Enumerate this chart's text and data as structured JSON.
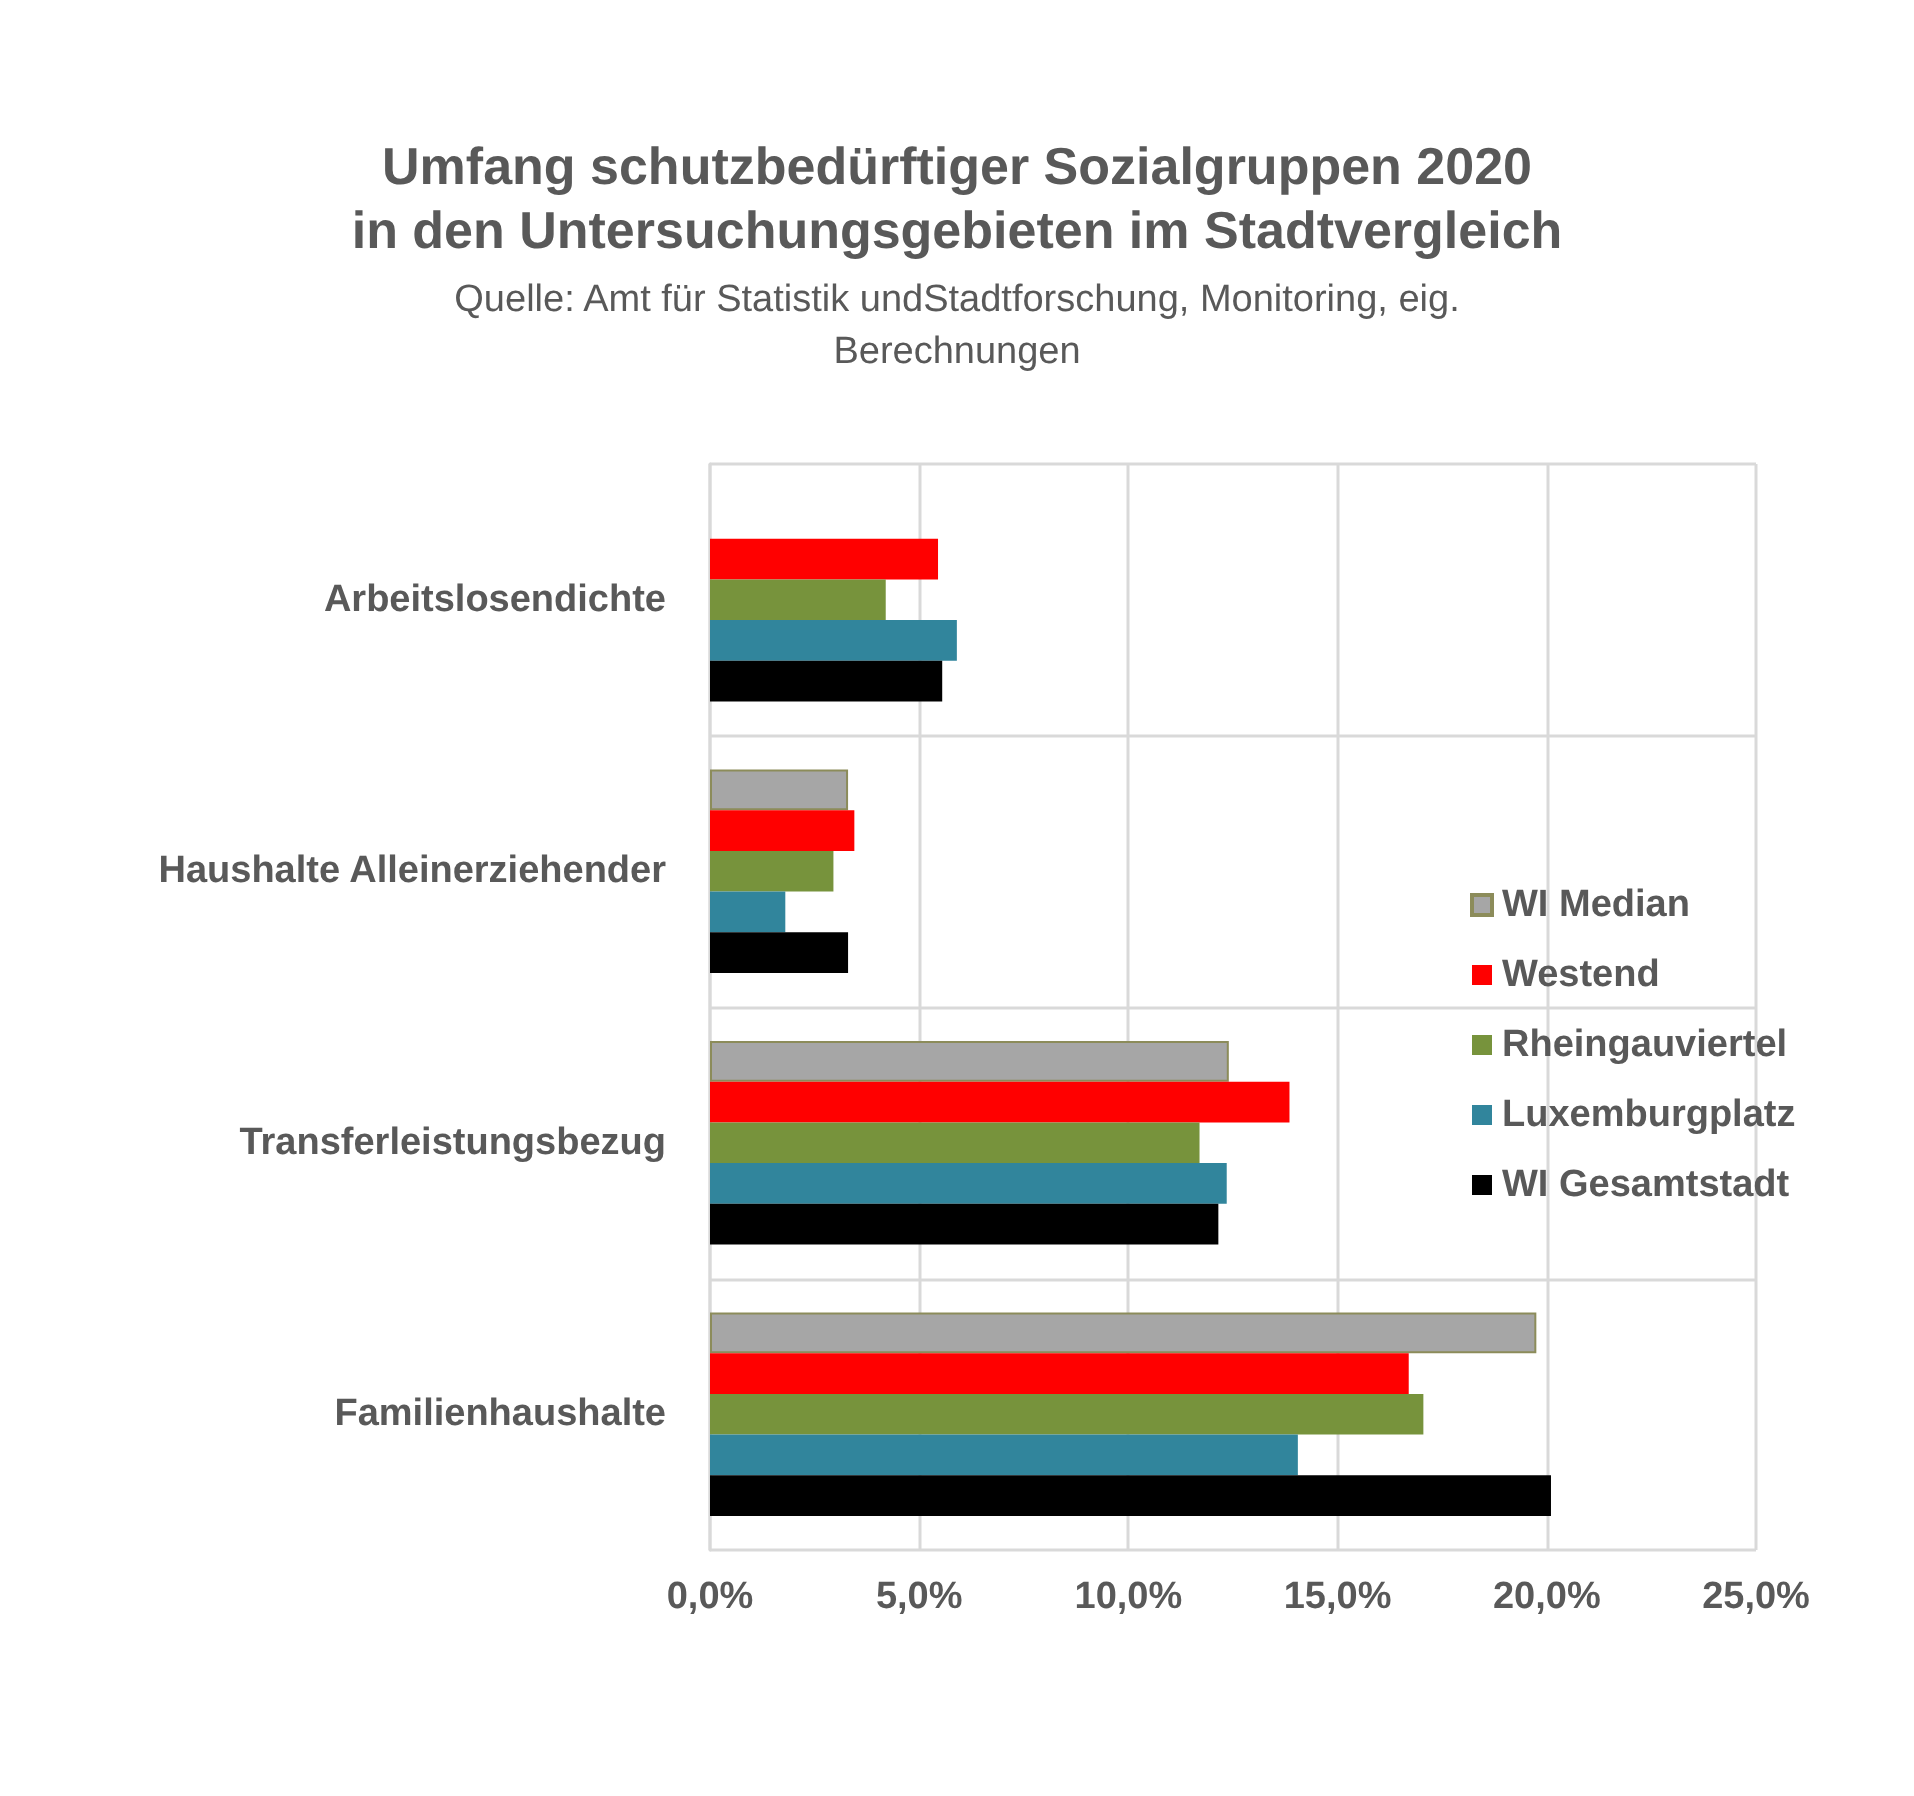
{
  "chart_data": {
    "type": "bar",
    "orientation": "horizontal",
    "title": "Umfang schutzbedürftiger Sozialgruppen 2020\nin den Untersuchungsgebieten im Stadtvergleich",
    "subtitle": "Quelle: Amt für Statistik undStadtforschung, Monitoring, eig.\nBerechnungen",
    "categories": [
      "Arbeitslosendichte",
      "Haushalte Alleinerziehender",
      "Transferleistungsbezug",
      "Familienhaushalte"
    ],
    "series": [
      {
        "name": "WI Median",
        "color": "#a6a6a6",
        "values": [
          null,
          3.3,
          12.4,
          19.75
        ]
      },
      {
        "name": "Westend",
        "color": "#ff0000",
        "values": [
          5.45,
          3.45,
          13.85,
          16.7
        ]
      },
      {
        "name": "Rheingauviertel",
        "color": "#77933c",
        "values": [
          4.2,
          2.95,
          11.7,
          17.05
        ]
      },
      {
        "name": "Luxemburgplatz",
        "color": "#31859c",
        "values": [
          5.9,
          1.8,
          12.35,
          14.05
        ]
      },
      {
        "name": "WI Gesamtstadt",
        "color": "#000000",
        "values": [
          5.55,
          3.3,
          12.15,
          20.1
        ]
      }
    ],
    "xlim": [
      0,
      25
    ],
    "xticks": [
      {
        "value": 0,
        "label": "0,0%"
      },
      {
        "value": 5,
        "label": "5,0%"
      },
      {
        "value": 10,
        "label": "10,0%"
      },
      {
        "value": 15,
        "label": "15,0%"
      },
      {
        "value": 20,
        "label": "20,0%"
      },
      {
        "value": 25,
        "label": "25,0%"
      }
    ],
    "grid": true,
    "legend": "right"
  }
}
